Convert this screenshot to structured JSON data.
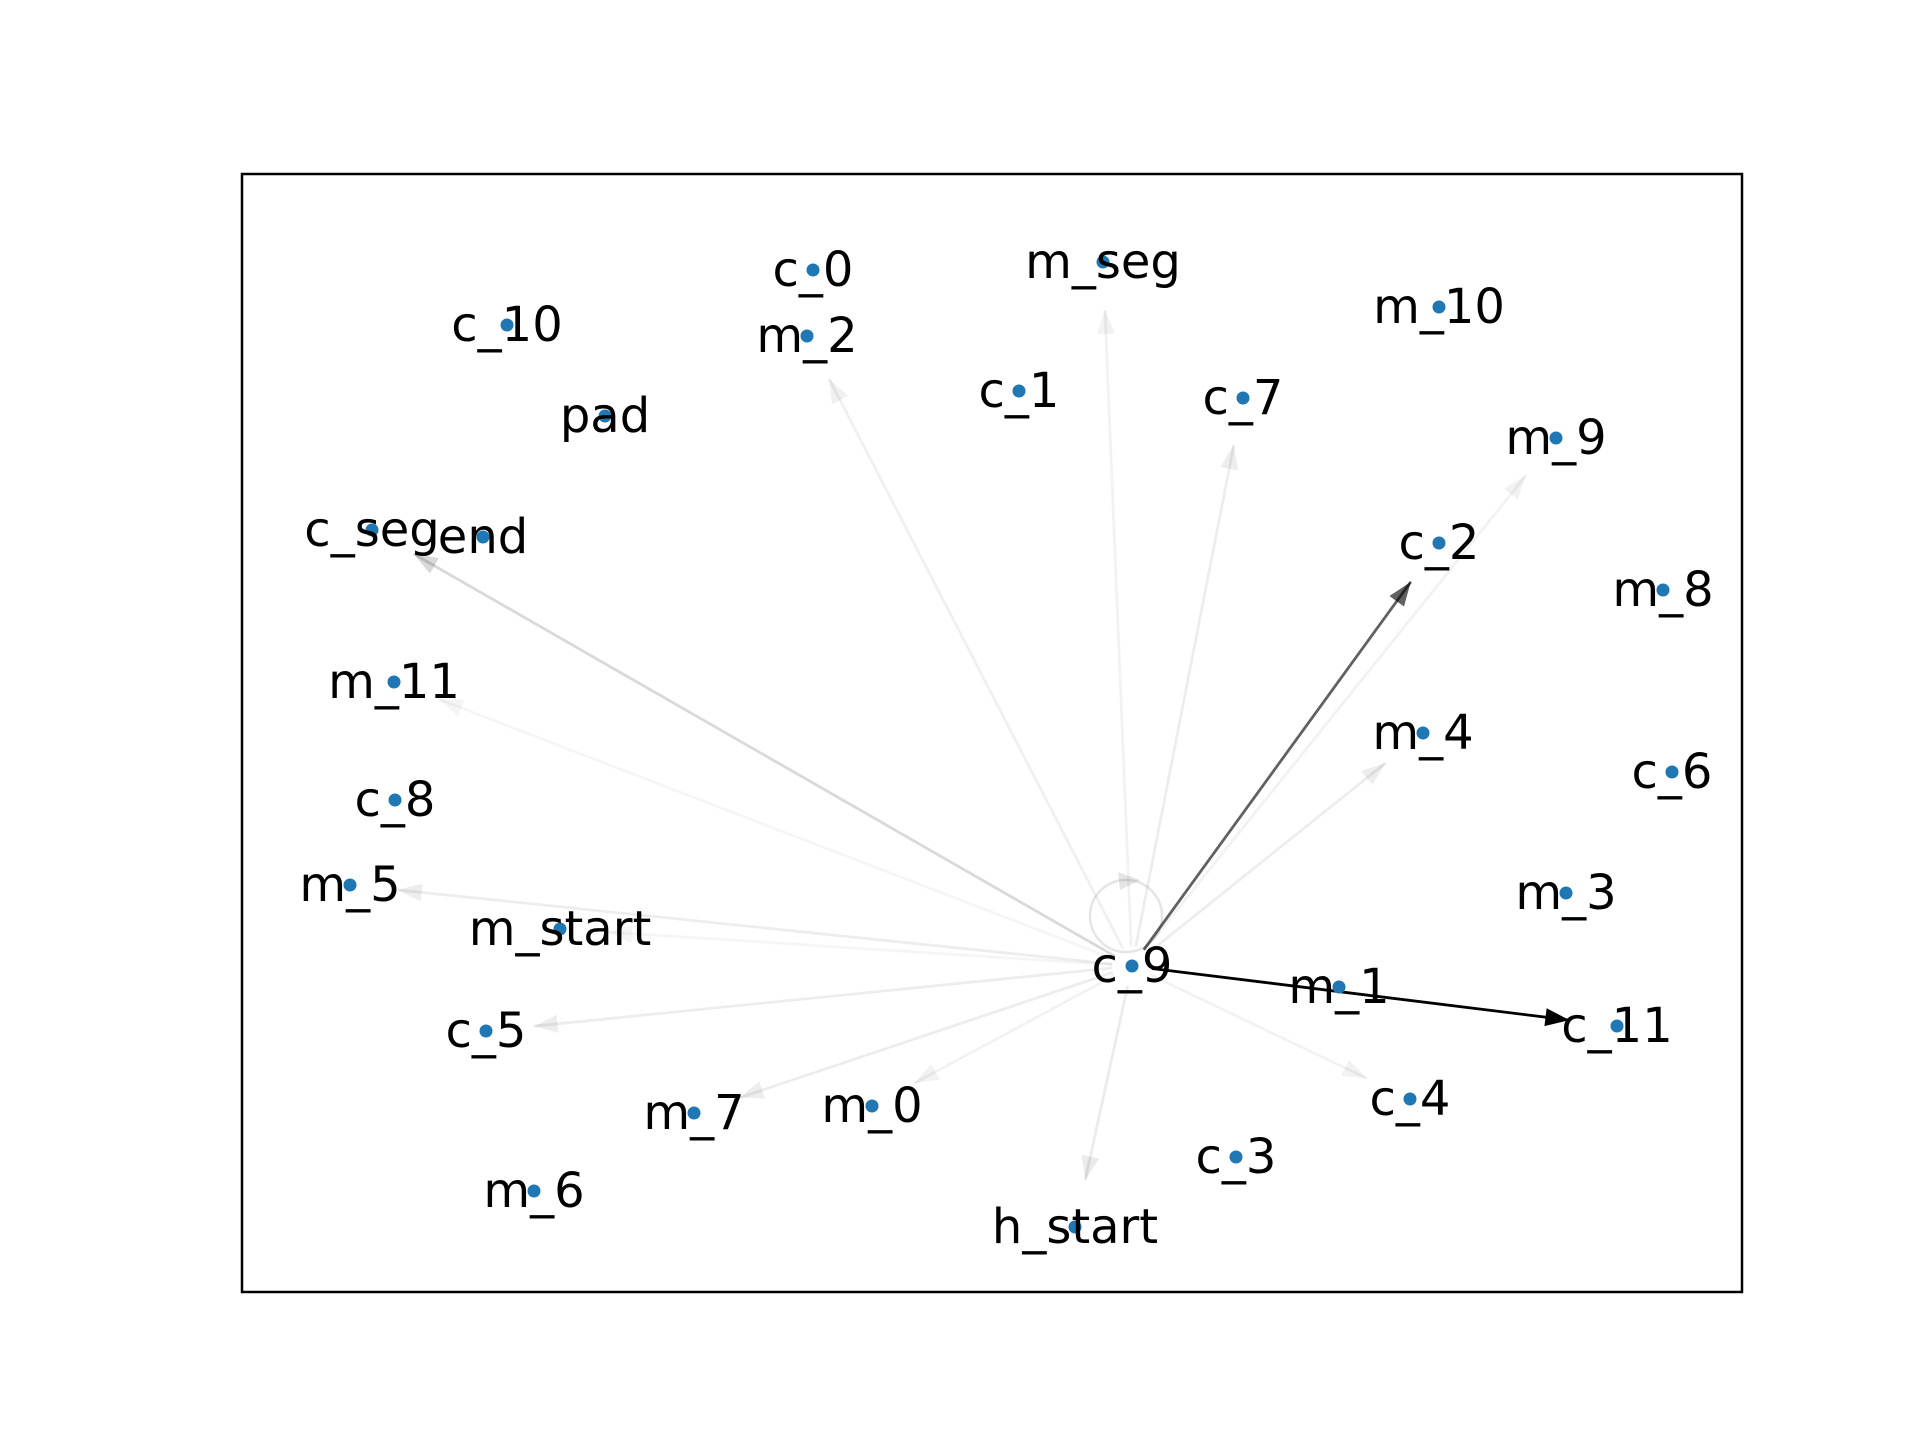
{
  "graph": {
    "center": "c_9",
    "colors": {
      "node": "#1f77b4",
      "edge": "#000000",
      "frame": "#000000"
    },
    "nodes": [
      {
        "id": "c_0"
      },
      {
        "id": "m_seg"
      },
      {
        "id": "c_10"
      },
      {
        "id": "m_2"
      },
      {
        "id": "m_10"
      },
      {
        "id": "c_1"
      },
      {
        "id": "pad"
      },
      {
        "id": "c_7"
      },
      {
        "id": "m_9"
      },
      {
        "id": "c_seg"
      },
      {
        "id": "end"
      },
      {
        "id": "c_2"
      },
      {
        "id": "m_8"
      },
      {
        "id": "m_11"
      },
      {
        "id": "m_4"
      },
      {
        "id": "c_6"
      },
      {
        "id": "c_8"
      },
      {
        "id": "m_5"
      },
      {
        "id": "m_3"
      },
      {
        "id": "m_start"
      },
      {
        "id": "c_9"
      },
      {
        "id": "m_1"
      },
      {
        "id": "c_5"
      },
      {
        "id": "c_11"
      },
      {
        "id": "m_7"
      },
      {
        "id": "m_0"
      },
      {
        "id": "c_4"
      },
      {
        "id": "c_3"
      },
      {
        "id": "m_6"
      },
      {
        "id": "h_start"
      }
    ],
    "edges": [
      {
        "source": "c_9",
        "target": "c_11",
        "weight": 1.0
      },
      {
        "source": "c_9",
        "target": "c_2",
        "weight": 0.62
      },
      {
        "source": "c_9",
        "target": "c_seg",
        "weight": 0.15
      },
      {
        "source": "c_9",
        "target": "m_2",
        "weight": 0.06
      },
      {
        "source": "c_9",
        "target": "m_seg",
        "weight": 0.05
      },
      {
        "source": "c_9",
        "target": "c_7",
        "weight": 0.07
      },
      {
        "source": "c_9",
        "target": "m_9",
        "weight": 0.05
      },
      {
        "source": "c_9",
        "target": "m_4",
        "weight": 0.07
      },
      {
        "source": "c_9",
        "target": "m_11",
        "weight": 0.04
      },
      {
        "source": "c_9",
        "target": "m_5",
        "weight": 0.07
      },
      {
        "source": "c_9",
        "target": "m_start",
        "weight": 0.04
      },
      {
        "source": "c_9",
        "target": "c_5",
        "weight": 0.07
      },
      {
        "source": "c_9",
        "target": "m_7",
        "weight": 0.07
      },
      {
        "source": "c_9",
        "target": "m_0",
        "weight": 0.05
      },
      {
        "source": "c_9",
        "target": "h_start",
        "weight": 0.08
      },
      {
        "source": "c_9",
        "target": "c_4",
        "weight": 0.05
      },
      {
        "source": "c_9",
        "target": "c_9",
        "weight": 0.1
      }
    ]
  }
}
